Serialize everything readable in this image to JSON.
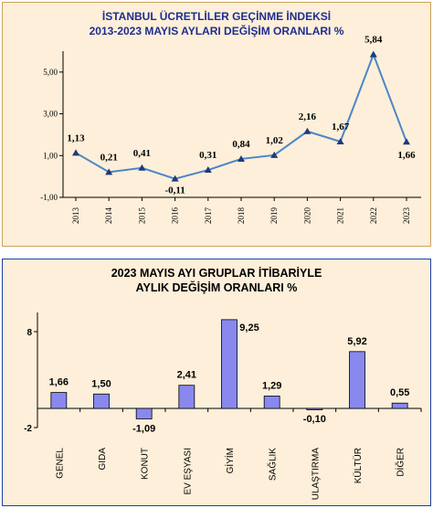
{
  "chart_data": [
    {
      "type": "line",
      "title": "İSTANBUL ÜCRETLİLER GEÇİNME İNDEKSİ",
      "subtitle": "2013-2023 MAYIS AYLARI DEĞİŞİM ORANLARI %",
      "x": [
        "2013",
        "2014",
        "2015",
        "2016",
        "2017",
        "2018",
        "2019",
        "2020",
        "2021",
        "2022",
        "2023"
      ],
      "values": [
        1.13,
        0.21,
        0.41,
        -0.11,
        0.31,
        0.84,
        1.02,
        2.16,
        1.67,
        5.84,
        1.66
      ],
      "data_labels": [
        "1,13",
        "0,21",
        "0,41",
        "-0,11",
        "0,31",
        "0,84",
        "1,02",
        "2,16",
        "1,67",
        "5,84",
        "1,66"
      ],
      "yticks": [
        "5,00",
        "3,00",
        "1,00",
        "-1,00"
      ],
      "ylim": [
        -1,
        6
      ],
      "line_color": "#4a86c8",
      "marker_color": "#1f3a7a",
      "grid": false
    },
    {
      "type": "bar",
      "title": "2023 MAYIS  AYI  GRUPLAR İTİBARİYLE",
      "subtitle": "AYLIK DEĞİŞİM  ORANLARI  %",
      "categories": [
        "GENEL",
        "GIDA",
        "KONUT",
        "EV EŞYASI",
        "GİYİM",
        "SAĞLIK",
        "ULAŞTIRMA",
        "KÜLTÜR",
        "DİĞER"
      ],
      "values": [
        1.66,
        1.5,
        -1.09,
        2.41,
        9.25,
        1.29,
        -0.1,
        5.92,
        0.55
      ],
      "data_labels": [
        "1,66",
        "1,50",
        "-1,09",
        "2,41",
        "9,25",
        "1,29",
        "-0,10",
        "5,92",
        "0,55"
      ],
      "yticks": [
        "8",
        "-2"
      ],
      "ylim": [
        -2,
        10
      ],
      "bar_color": "#8888ee",
      "grid": false
    }
  ]
}
